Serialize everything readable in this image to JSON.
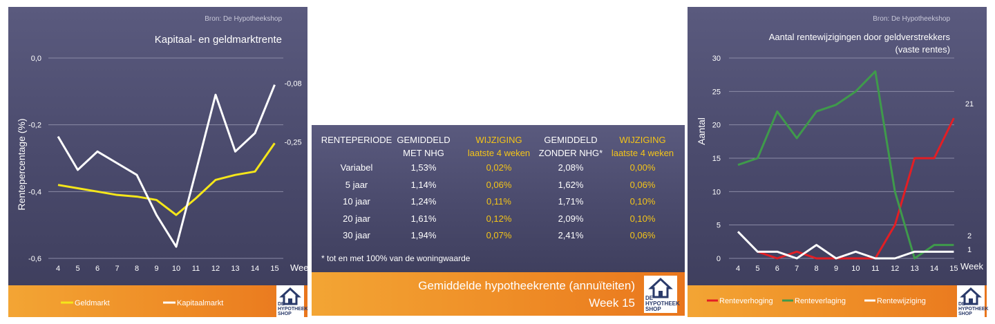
{
  "colors": {
    "panel_dark": "#4f4f72",
    "orange": "#ee8a25",
    "yellow": "#f5e61a",
    "white": "#ffffff",
    "red": "#e31e24",
    "green": "#3f9a4b",
    "highlight_text": "#f5c518"
  },
  "left_chart": {
    "source": "Bron: De Hypotheekshop",
    "chart_data": {
      "type": "line",
      "title": "Kapitaal- en geldmarktrente",
      "ylabel": "Rentepercentage (%)",
      "xlabel": "Week",
      "x": [
        4,
        5,
        6,
        7,
        8,
        9,
        10,
        11,
        12,
        13,
        14,
        15
      ],
      "ylim": [
        -0.6,
        0.0
      ],
      "yticks": [
        "0,0",
        "-0,2",
        "-0,4",
        "-0,6"
      ],
      "series": [
        {
          "name": "Geldmarkt",
          "color": "#f5e61a",
          "values": [
            -0.38,
            -0.39,
            -0.4,
            -0.41,
            -0.415,
            -0.425,
            -0.47,
            -0.42,
            -0.365,
            -0.35,
            -0.34,
            -0.255
          ],
          "end_label": "-0,25"
        },
        {
          "name": "Kapitaalmarkt",
          "color": "#ffffff",
          "values": [
            -0.235,
            -0.335,
            -0.28,
            -0.315,
            -0.35,
            -0.47,
            -0.565,
            -0.34,
            -0.11,
            -0.28,
            -0.225,
            -0.08
          ],
          "end_label": "-0,08"
        }
      ],
      "legend": "bottom"
    }
  },
  "middle_table": {
    "headers": [
      {
        "line1": "RENTEPERIODE",
        "line2": ""
      },
      {
        "line1": "GEMIDDELD",
        "line2": "MET NHG"
      },
      {
        "line1": "WIJZIGING",
        "line2": "laatste 4 weken"
      },
      {
        "line1": "GEMIDDELD",
        "line2": "ZONDER NHG*"
      },
      {
        "line1": "WIJZIGING",
        "line2": "laatste 4 weken"
      }
    ],
    "rows": [
      [
        "Variabel",
        "1,53%",
        "0,02%",
        "2,08%",
        "0,00%"
      ],
      [
        "5 jaar",
        "1,14%",
        "0,06%",
        "1,62%",
        "0,06%"
      ],
      [
        "10 jaar",
        "1,24%",
        "0,11%",
        "1,71%",
        "0,10%"
      ],
      [
        "20 jaar",
        "1,61%",
        "0,12%",
        "2,09%",
        "0,10%"
      ],
      [
        "30 jaar",
        "1,94%",
        "0,07%",
        "2,41%",
        "0,06%"
      ]
    ],
    "footnote": "* tot en met 100% van de woningwaarde",
    "banner_title": "Gemiddelde hypotheekrente (annuïteiten)",
    "banner_week": "Week 15"
  },
  "right_chart": {
    "source": "Bron: De Hypotheekshop",
    "chart_data": {
      "type": "line",
      "title": "Aantal rentewijzigingen door geldverstrekkers",
      "subtitle": "(vaste rentes)",
      "ylabel": "Aantal",
      "xlabel": "Week",
      "x": [
        4,
        5,
        6,
        7,
        8,
        9,
        10,
        11,
        12,
        13,
        14,
        15
      ],
      "ylim": [
        0,
        30
      ],
      "yticks": [
        "30",
        "25",
        "20",
        "15",
        "10",
        "5",
        "0"
      ],
      "series": [
        {
          "name": "Renteverhoging",
          "color": "#e31e24",
          "values": [
            null,
            1,
            0,
            1,
            0,
            0,
            0,
            0,
            5,
            15,
            15,
            21
          ],
          "end_label": "21"
        },
        {
          "name": "Renteverlaging",
          "color": "#3f9a4b",
          "values": [
            14,
            15,
            22,
            18,
            22,
            23,
            25,
            28,
            10,
            0,
            2,
            2
          ],
          "end_label": "2"
        },
        {
          "name": "Rentewijziging",
          "color": "#ffffff",
          "values": [
            4,
            1,
            1,
            0,
            2,
            0,
            1,
            0,
            0,
            1,
            1,
            1
          ],
          "end_label": "1"
        }
      ],
      "legend": "bottom"
    }
  },
  "logo": {
    "line1": "DE",
    "line2": "HYPOTHEEK",
    "line3": "SHOP"
  }
}
